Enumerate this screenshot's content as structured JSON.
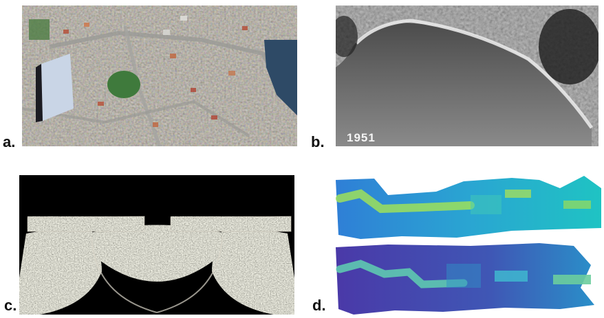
{
  "panels": {
    "a": {
      "label": "a."
    },
    "b": {
      "label": "b.",
      "year": "1951"
    },
    "c": {
      "label": "c."
    },
    "d": {
      "label": "d."
    }
  }
}
